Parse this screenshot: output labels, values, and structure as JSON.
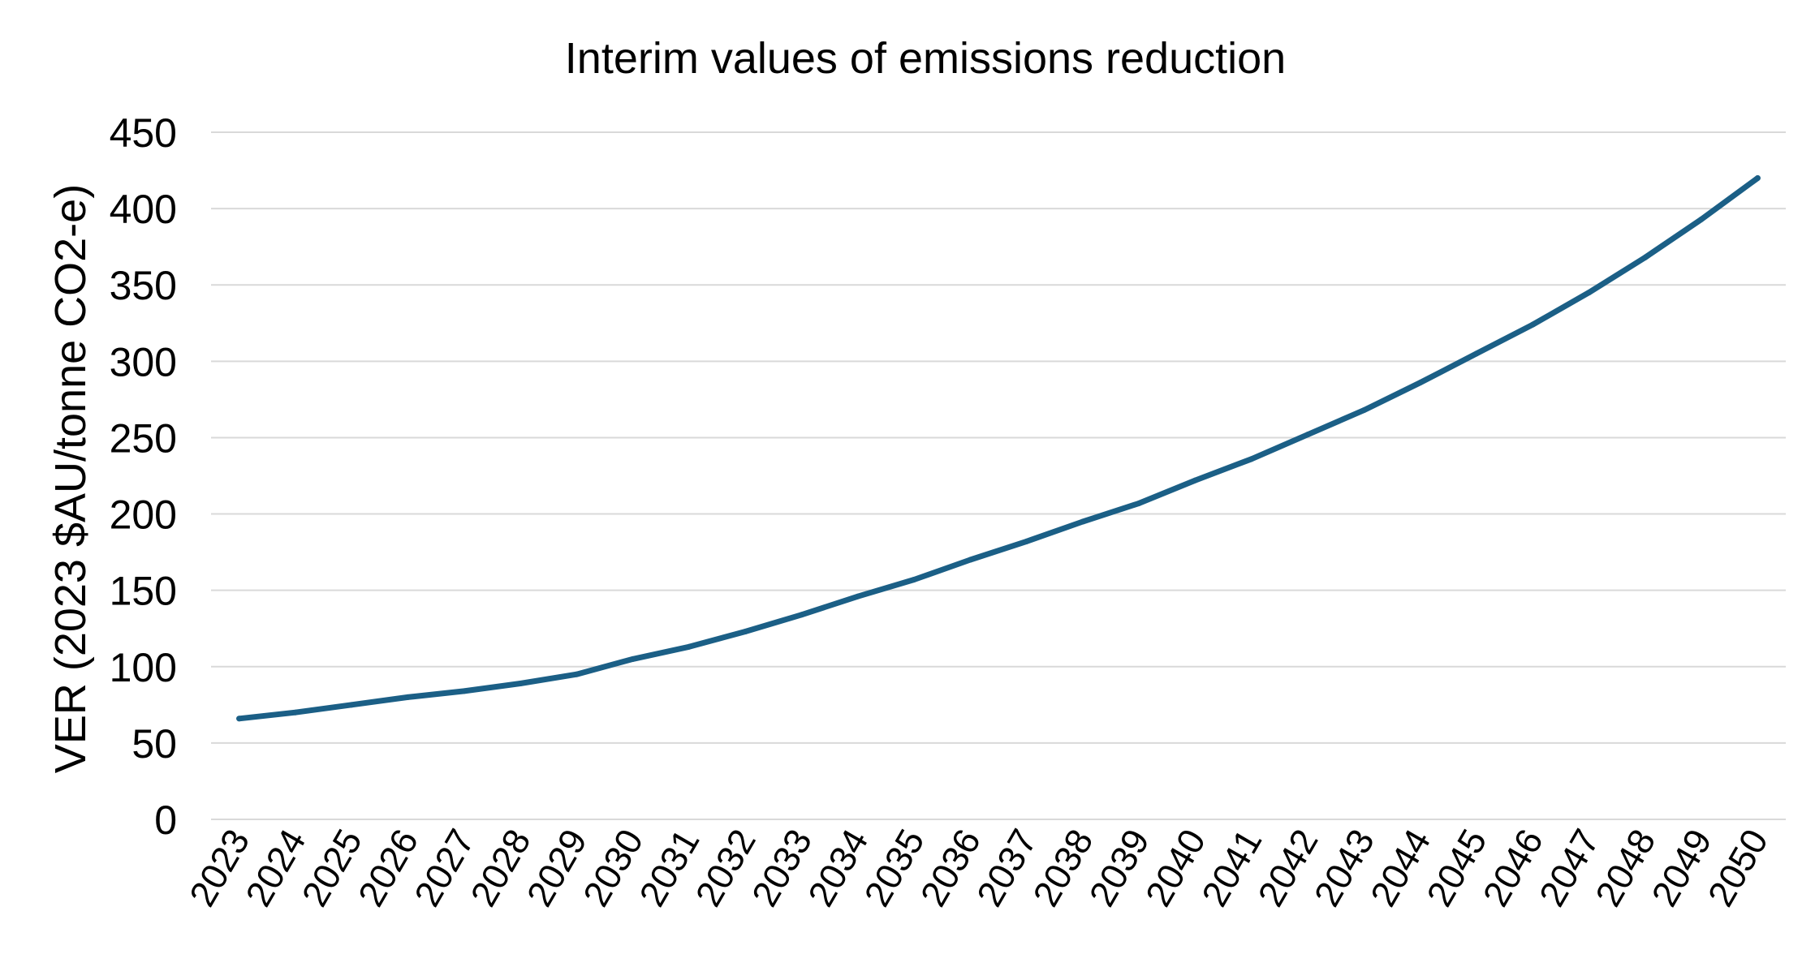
{
  "chart_data": {
    "type": "line",
    "title": "Interim values of emissions reduction",
    "xlabel": "",
    "ylabel": "VER (2023 $AU/tonne CO2-e)",
    "ylim": [
      0,
      450
    ],
    "yticks": [
      0,
      50,
      100,
      150,
      200,
      250,
      300,
      350,
      400,
      450
    ],
    "grid": true,
    "legend": "none",
    "line_color": "#1b5f86",
    "grid_color": "#d9d9d9",
    "categories": [
      "2023",
      "2024",
      "2025",
      "2026",
      "2027",
      "2028",
      "2029",
      "2030",
      "2031",
      "2032",
      "2033",
      "2034",
      "2035",
      "2036",
      "2037",
      "2038",
      "2039",
      "2040",
      "2041",
      "2042",
      "2043",
      "2044",
      "2045",
      "2046",
      "2047",
      "2048",
      "2049",
      "2050"
    ],
    "series": [
      {
        "values": [
          66,
          70,
          75,
          80,
          84,
          89,
          95,
          105,
          113,
          123,
          134,
          146,
          157,
          170,
          182,
          195,
          207,
          222,
          236,
          252,
          268,
          286,
          305,
          324,
          345,
          368,
          393,
          420
        ]
      }
    ]
  }
}
